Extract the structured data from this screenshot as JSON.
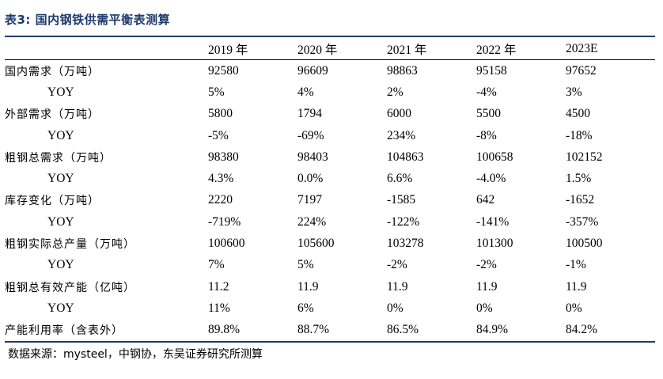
{
  "title": "表3: 国内钢铁供需平衡表测算",
  "columns": [
    "",
    "2019 年",
    "2020 年",
    "2021 年",
    "2022 年",
    "2023E"
  ],
  "rows": [
    {
      "label": "国内需求（万吨）",
      "sub": false,
      "values": [
        "92580",
        "96609",
        "98863",
        "95158",
        "97652"
      ]
    },
    {
      "label": "YOY",
      "sub": true,
      "values": [
        "5%",
        "4%",
        "2%",
        "-4%",
        "3%"
      ]
    },
    {
      "label": "外部需求（万吨）",
      "sub": false,
      "values": [
        "5800",
        "1794",
        "6000",
        "5500",
        "4500"
      ]
    },
    {
      "label": "YOY",
      "sub": true,
      "values": [
        "-5%",
        "-69%",
        "234%",
        "-8%",
        "-18%"
      ]
    },
    {
      "label": "粗钢总需求（万吨）",
      "sub": false,
      "values": [
        "98380",
        "98403",
        "104863",
        "100658",
        "102152"
      ]
    },
    {
      "label": "YOY",
      "sub": true,
      "values": [
        "4.3%",
        "0.0%",
        "6.6%",
        "-4.0%",
        "1.5%"
      ]
    },
    {
      "label": "库存变化（万吨）",
      "sub": false,
      "values": [
        "2220",
        "7197",
        "-1585",
        "642",
        "-1652"
      ]
    },
    {
      "label": "YOY",
      "sub": true,
      "values": [
        "-719%",
        "224%",
        "-122%",
        "-141%",
        "-357%"
      ]
    },
    {
      "label": "粗钢实际总产量（万吨）",
      "sub": false,
      "values": [
        "100600",
        "105600",
        "103278",
        "101300",
        "100500"
      ]
    },
    {
      "label": "YOY",
      "sub": true,
      "values": [
        "7%",
        "5%",
        "-2%",
        "-2%",
        "-1%"
      ]
    },
    {
      "label": "粗钢总有效产能（亿吨）",
      "sub": false,
      "values": [
        "11.2",
        "11.9",
        "11.9",
        "11.9",
        "11.9"
      ]
    },
    {
      "label": "YOY",
      "sub": true,
      "values": [
        "11%",
        "6%",
        "0%",
        "0%",
        "0%"
      ]
    },
    {
      "label": "产能利用率（含表外）",
      "sub": false,
      "values": [
        "89.8%",
        "88.7%",
        "86.5%",
        "84.9%",
        "84.2%"
      ]
    }
  ],
  "source": "数据来源：mysteel，中钢协，东吴证券研究所测算"
}
